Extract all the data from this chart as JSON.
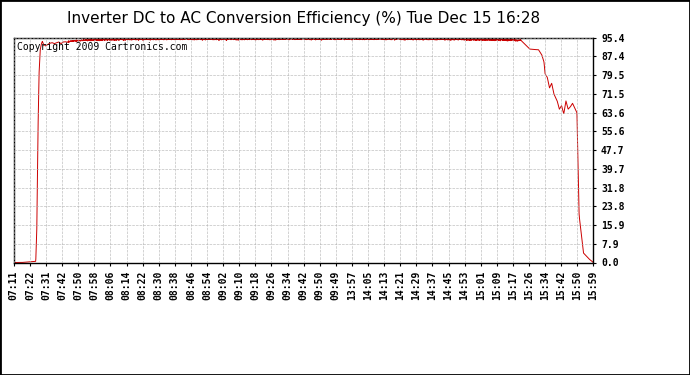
{
  "title": "Inverter DC to AC Conversion Efficiency (%) Tue Dec 15 16:28",
  "copyright": "Copyright 2009 Cartronics.com",
  "line_color": "#cc0000",
  "bg_color": "#ffffff",
  "plot_bg_color": "#ffffff",
  "grid_color": "#b0b0b0",
  "yticks": [
    0.0,
    7.9,
    15.9,
    23.8,
    31.8,
    39.7,
    47.7,
    55.6,
    63.6,
    71.5,
    79.5,
    87.4,
    95.4
  ],
  "xtick_labels": [
    "07:11",
    "07:22",
    "07:31",
    "07:42",
    "07:50",
    "07:58",
    "08:06",
    "08:14",
    "08:22",
    "08:30",
    "08:38",
    "08:46",
    "08:54",
    "09:02",
    "09:10",
    "09:18",
    "09:26",
    "09:34",
    "09:42",
    "09:50",
    "09:49",
    "13:57",
    "14:05",
    "14:13",
    "14:21",
    "14:29",
    "14:37",
    "14:45",
    "14:53",
    "15:01",
    "15:09",
    "15:17",
    "15:26",
    "15:34",
    "15:42",
    "15:50",
    "15:59"
  ],
  "ymin": 0.0,
  "ymax": 95.4,
  "title_fontsize": 11,
  "copyright_fontsize": 7,
  "tick_fontsize": 7,
  "control_points": [
    [
      431,
      0.0
    ],
    [
      438,
      0.0
    ],
    [
      451,
      0.5
    ],
    [
      452,
      15.0
    ],
    [
      453,
      55.0
    ],
    [
      454,
      80.0
    ],
    [
      455,
      90.0
    ],
    [
      456,
      92.5
    ],
    [
      457,
      93.8
    ],
    [
      458,
      92.5
    ],
    [
      460,
      91.8
    ],
    [
      462,
      92.5
    ],
    [
      464,
      93.0
    ],
    [
      466,
      93.2
    ],
    [
      468,
      92.8
    ],
    [
      470,
      93.2
    ],
    [
      472,
      93.5
    ],
    [
      474,
      92.8
    ],
    [
      476,
      93.5
    ],
    [
      478,
      93.6
    ],
    [
      480,
      93.4
    ],
    [
      482,
      93.8
    ],
    [
      486,
      93.9
    ],
    [
      490,
      94.1
    ],
    [
      494,
      94.2
    ],
    [
      498,
      94.3
    ],
    [
      502,
      94.3
    ],
    [
      506,
      94.4
    ],
    [
      510,
      94.4
    ],
    [
      514,
      94.5
    ],
    [
      518,
      94.5
    ],
    [
      522,
      94.5
    ],
    [
      526,
      94.6
    ],
    [
      530,
      94.6
    ],
    [
      534,
      94.6
    ],
    [
      538,
      94.6
    ],
    [
      542,
      94.7
    ],
    [
      560,
      94.7
    ],
    [
      580,
      94.7
    ],
    [
      600,
      94.7
    ],
    [
      620,
      94.7
    ],
    [
      640,
      94.7
    ],
    [
      660,
      94.7
    ],
    [
      680,
      94.8
    ],
    [
      700,
      94.8
    ],
    [
      720,
      94.8
    ],
    [
      740,
      94.8
    ],
    [
      760,
      94.8
    ],
    [
      780,
      94.8
    ],
    [
      800,
      94.7
    ],
    [
      820,
      94.7
    ],
    [
      837,
      94.6
    ],
    [
      845,
      94.5
    ],
    [
      853,
      94.5
    ],
    [
      861,
      94.4
    ],
    [
      869,
      94.4
    ],
    [
      877,
      94.4
    ],
    [
      885,
      94.3
    ],
    [
      893,
      94.2
    ],
    [
      901,
      90.5
    ],
    [
      905,
      90.3
    ],
    [
      909,
      90.2
    ],
    [
      912,
      88.0
    ],
    [
      914,
      85.0
    ],
    [
      915,
      80.0
    ],
    [
      917,
      78.5
    ],
    [
      919,
      74.0
    ],
    [
      921,
      76.0
    ],
    [
      923,
      71.5
    ],
    [
      926,
      68.5
    ],
    [
      928,
      65.0
    ],
    [
      930,
      66.5
    ],
    [
      932,
      63.0
    ],
    [
      934,
      68.5
    ],
    [
      936,
      65.0
    ],
    [
      938,
      66.0
    ],
    [
      940,
      67.5
    ],
    [
      942,
      65.5
    ],
    [
      944,
      63.5
    ],
    [
      946,
      20.0
    ],
    [
      950,
      4.0
    ],
    [
      955,
      1.5
    ],
    [
      959,
      0.0
    ]
  ]
}
